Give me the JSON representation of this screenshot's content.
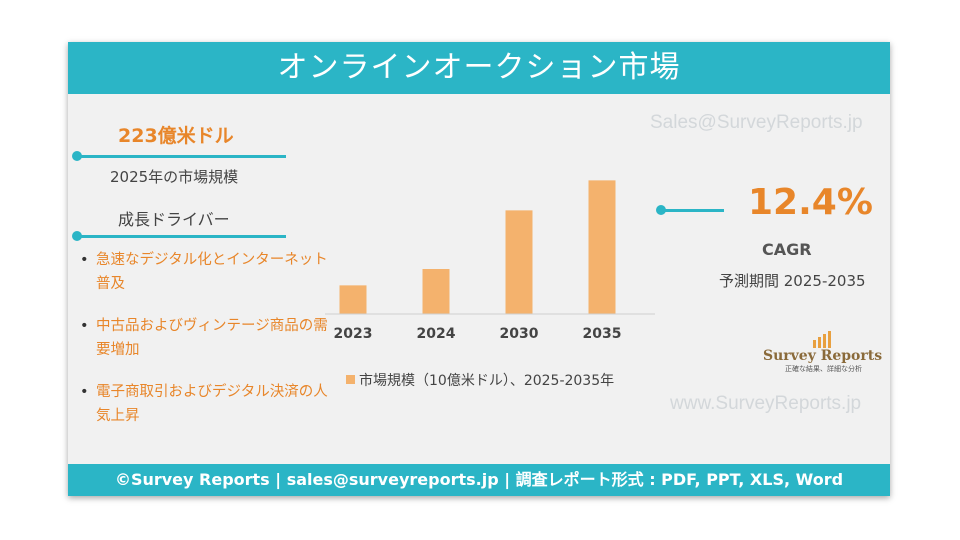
{
  "title": "オンラインオークション市場",
  "watermark_email": "Sales@SurveyReports.jp",
  "watermark_url": "www.SurveyReports.jp",
  "market_size": {
    "value": "223億米ドル",
    "label": "2025年の市場規模"
  },
  "drivers": {
    "title": "成長ドライバー",
    "bullet": "•",
    "items": [
      "急速なデジタル化とインターネット普及",
      "中古品およびヴィンテージ商品の需要増加",
      "電子商取引およびデジタル決済の人気上昇"
    ]
  },
  "cagr": {
    "value": "12.4%",
    "label": "CAGR",
    "period": "予測期間 2025-2035"
  },
  "logo": {
    "name": "Survey Reports",
    "tagline": "正確な結果、詳細な分析"
  },
  "footer": "©Survey Reports | sales@surveyreports.jp | 調査レポート形式 : PDF, PPT, XLS, Word",
  "colors": {
    "accent": "#2bb5c6",
    "orange": "#e8862a",
    "bar": "#f4b26d"
  },
  "chart_data": {
    "type": "bar",
    "categories": [
      "2023",
      "2024",
      "2030",
      "2035"
    ],
    "values": [
      10.5,
      16.5,
      38,
      49
    ],
    "legend": "市場規模（10億米ドル）、2025-2035年",
    "ylim": [
      0,
      55
    ],
    "grid": false
  }
}
